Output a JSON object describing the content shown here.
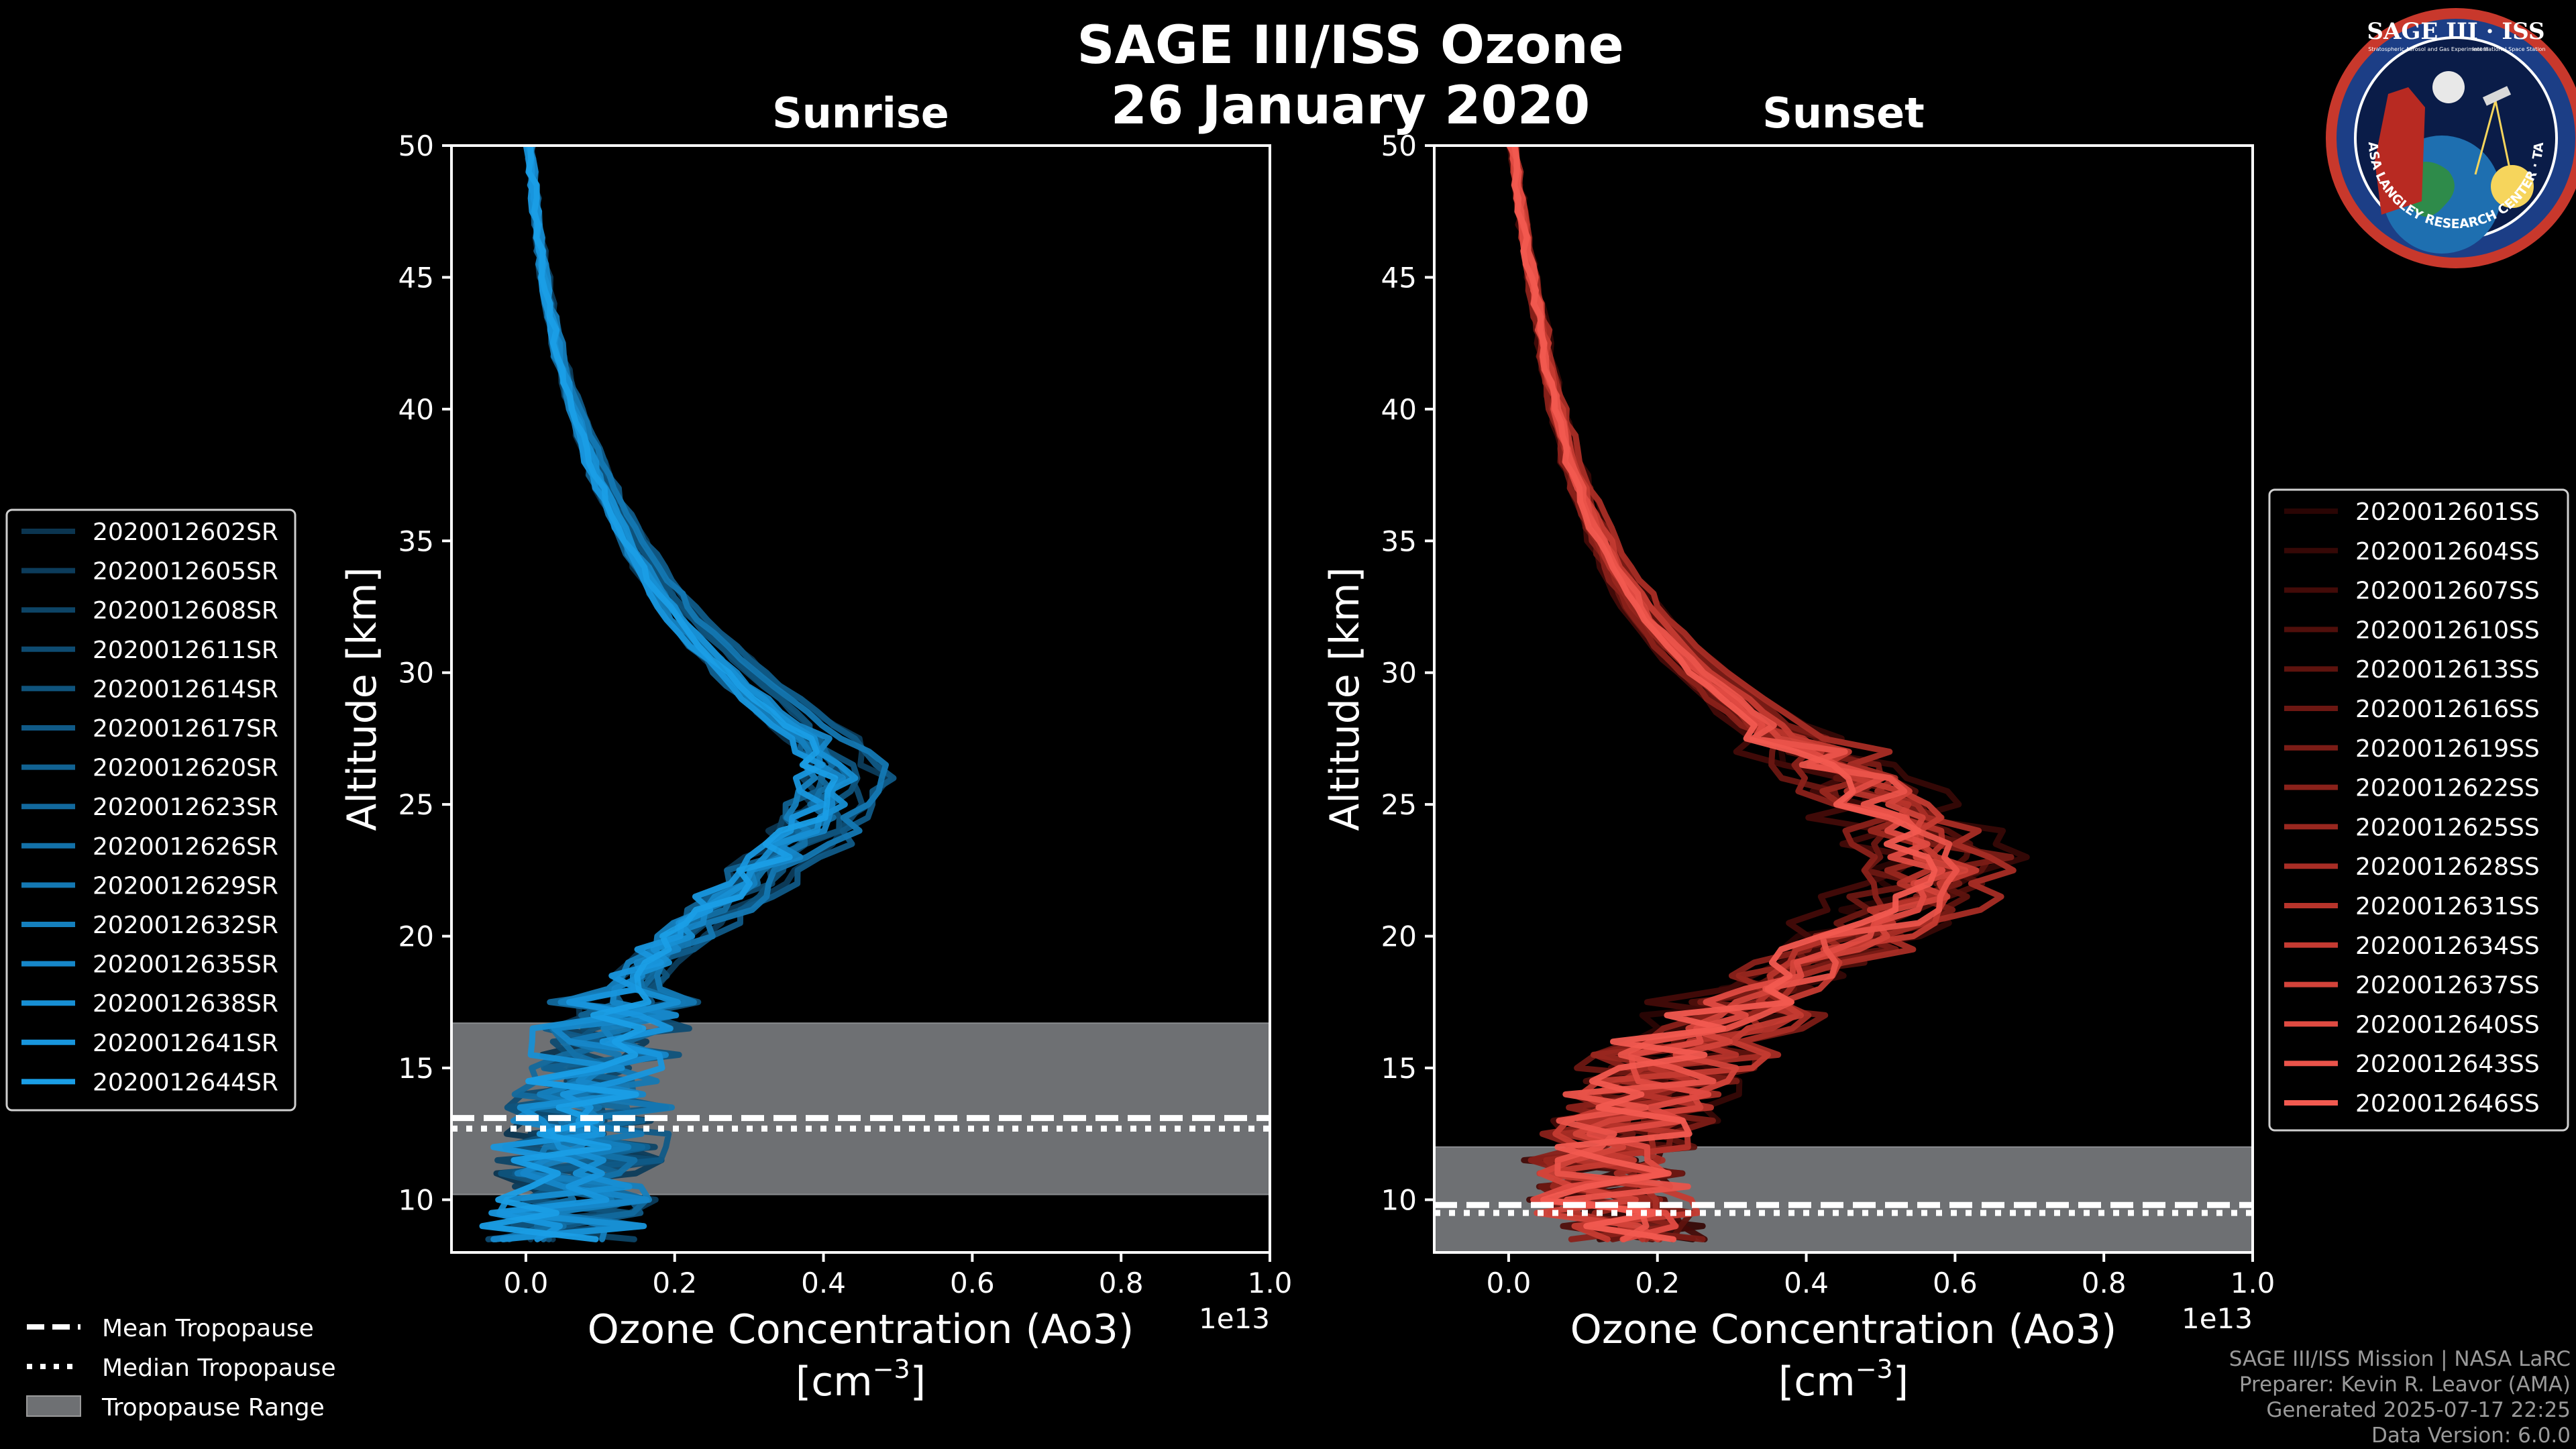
{
  "figure": {
    "title_line1": "SAGE III/ISS Ozone",
    "title_line2": "26 January 2020"
  },
  "chart_data": [
    {
      "id": "sunrise",
      "type": "line",
      "title": "Sunrise",
      "xlabel": "Ozone Concentration (Ao3)",
      "xunit_base": "[cm",
      "xunit_sup": "−3",
      "xunit_close": "]",
      "ylabel": "Altitude [km]",
      "offset_text": "1e13",
      "xlim": [
        -0.1,
        1.0
      ],
      "ylim": [
        8,
        50
      ],
      "xticks": [
        0.0,
        0.2,
        0.4,
        0.6,
        0.8,
        1.0
      ],
      "xtick_labels": [
        "0.0",
        "0.2",
        "0.4",
        "0.6",
        "0.8",
        "1.0"
      ],
      "yticks": [
        10,
        15,
        20,
        25,
        30,
        35,
        40,
        45,
        50
      ],
      "ytick_labels": [
        "10",
        "15",
        "20",
        "25",
        "30",
        "35",
        "40",
        "45",
        "50"
      ],
      "tropopause": {
        "mean": 13.1,
        "median": 12.7,
        "range": [
          10.2,
          16.7
        ]
      },
      "profile": {
        "altitude": [
          50,
          48,
          46,
          44,
          42,
          40,
          38,
          36,
          34,
          32,
          30,
          28,
          27,
          26,
          25,
          24,
          23,
          22,
          21,
          20,
          19,
          18,
          17,
          16,
          15,
          14,
          13,
          12,
          11,
          10,
          9,
          8.5
        ],
        "concentration": [
          0.005,
          0.012,
          0.02,
          0.03,
          0.045,
          0.065,
          0.09,
          0.12,
          0.16,
          0.21,
          0.28,
          0.36,
          0.4,
          0.42,
          0.41,
          0.38,
          0.34,
          0.3,
          0.25,
          0.21,
          0.17,
          0.14,
          0.12,
          0.1,
          0.09,
          0.08,
          0.08,
          0.07,
          0.07,
          0.06,
          0.05,
          0.05
        ]
      },
      "series": [
        {
          "name": "2020012602SR",
          "color": "#0b3550"
        },
        {
          "name": "2020012605SR",
          "color": "#0c3c5b"
        },
        {
          "name": "2020012608SR",
          "color": "#0d4466"
        },
        {
          "name": "2020012611SR",
          "color": "#0e4b71"
        },
        {
          "name": "2020012614SR",
          "color": "#0f537c"
        },
        {
          "name": "2020012617SR",
          "color": "#105a87"
        },
        {
          "name": "2020012620SR",
          "color": "#116292"
        },
        {
          "name": "2020012623SR",
          "color": "#12699d"
        },
        {
          "name": "2020012626SR",
          "color": "#1371a8"
        },
        {
          "name": "2020012629SR",
          "color": "#1478b3"
        },
        {
          "name": "2020012632SR",
          "color": "#1580be"
        },
        {
          "name": "2020012635SR",
          "color": "#1687c9"
        },
        {
          "name": "2020012638SR",
          "color": "#178fd4"
        },
        {
          "name": "2020012641SR",
          "color": "#1896dd"
        },
        {
          "name": "2020012644SR",
          "color": "#1a9ee6"
        }
      ]
    },
    {
      "id": "sunset",
      "type": "line",
      "title": "Sunset",
      "xlabel": "Ozone Concentration (Ao3)",
      "xunit_base": "[cm",
      "xunit_sup": "−3",
      "xunit_close": "]",
      "ylabel": "Altitude [km]",
      "offset_text": "1e13",
      "xlim": [
        -0.1,
        1.0
      ],
      "ylim": [
        8,
        50
      ],
      "xticks": [
        0.0,
        0.2,
        0.4,
        0.6,
        0.8,
        1.0
      ],
      "xtick_labels": [
        "0.0",
        "0.2",
        "0.4",
        "0.6",
        "0.8",
        "1.0"
      ],
      "yticks": [
        10,
        15,
        20,
        25,
        30,
        35,
        40,
        45,
        50
      ],
      "ytick_labels": [
        "10",
        "15",
        "20",
        "25",
        "30",
        "35",
        "40",
        "45",
        "50"
      ],
      "tropopause": {
        "mean": 9.8,
        "median": 9.5,
        "range": [
          8,
          12
        ]
      },
      "profile": {
        "altitude": [
          50,
          48,
          46,
          44,
          42,
          40,
          38,
          36,
          34,
          32,
          30,
          28,
          26,
          24,
          23,
          22,
          21,
          20,
          19,
          18,
          17,
          16,
          15,
          14,
          13,
          12,
          11,
          10,
          9,
          8.3
        ],
        "concentration": [
          0.005,
          0.015,
          0.025,
          0.038,
          0.05,
          0.065,
          0.085,
          0.11,
          0.145,
          0.19,
          0.26,
          0.35,
          0.46,
          0.55,
          0.58,
          0.57,
          0.53,
          0.47,
          0.41,
          0.35,
          0.3,
          0.25,
          0.21,
          0.18,
          0.16,
          0.15,
          0.14,
          0.13,
          0.15,
          0.2
        ]
      },
      "series": [
        {
          "name": "2020012601SS",
          "color": "#2a0504"
        },
        {
          "name": "2020012604SS",
          "color": "#360806"
        },
        {
          "name": "2020012607SS",
          "color": "#430b08"
        },
        {
          "name": "2020012610SS",
          "color": "#500f0b"
        },
        {
          "name": "2020012613SS",
          "color": "#5e130e"
        },
        {
          "name": "2020012616SS",
          "color": "#6c1712"
        },
        {
          "name": "2020012619SS",
          "color": "#7b1c16"
        },
        {
          "name": "2020012622SS",
          "color": "#8a211a"
        },
        {
          "name": "2020012625SS",
          "color": "#99271f"
        },
        {
          "name": "2020012628SS",
          "color": "#a82d25"
        },
        {
          "name": "2020012631SS",
          "color": "#b7342b"
        },
        {
          "name": "2020012634SS",
          "color": "#c53b32"
        },
        {
          "name": "2020012637SS",
          "color": "#d3433a"
        },
        {
          "name": "2020012640SS",
          "color": "#e04b42"
        },
        {
          "name": "2020012643SS",
          "color": "#ea534a"
        },
        {
          "name": "2020012646SS",
          "color": "#f25a50"
        }
      ]
    }
  ],
  "tropopause_legend": {
    "mean": "Mean Tropopause",
    "median": "Median Tropopause",
    "range": "Tropopause Range"
  },
  "logo": {
    "name": "SAGE III · ISS",
    "subtitle_left": "Stratospheric Aerosol and Gas Experiment III",
    "subtitle_right": "International Space Station",
    "ring_text": "BALL · NASA LANGLEY RESEARCH CENTER · TAS-I · ESA"
  },
  "credits": {
    "line1": "SAGE III/ISS Mission | NASA LaRC",
    "line2": "Preparer: Kevin R. Leavor (AMA)",
    "line3": "Generated 2025-07-17 22:25",
    "line4": "Data Version: 6.0.0"
  },
  "colors": {
    "background": "#000000",
    "frame": "#ffffff",
    "tropopause_fill": "#6e7073"
  }
}
